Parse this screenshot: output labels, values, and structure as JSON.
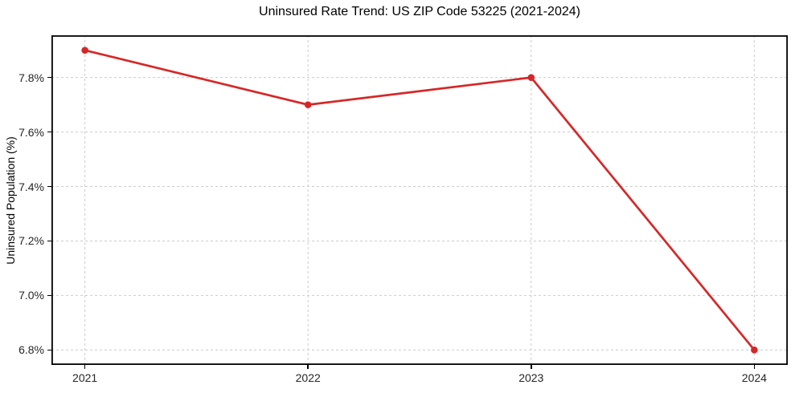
{
  "figure": {
    "background": "#ffffff",
    "frame_color": "#000000"
  },
  "chart_data": {
    "type": "line",
    "title": "Uninsured Rate Trend: US ZIP Code 53225 (2021-2024)",
    "xlabel": "",
    "ylabel": "Uninsured Population (%)",
    "categories": [
      "2021",
      "2022",
      "2023",
      "2024"
    ],
    "series": [
      {
        "values": [
          7.9,
          7.7,
          7.8,
          6.8
        ],
        "color": "#d62728",
        "marker": "circle"
      }
    ],
    "ylim": [
      6.745,
      7.955
    ],
    "x_margin": 0.15,
    "yticks": {
      "values": [
        6.8,
        7.0,
        7.2,
        7.4,
        7.6,
        7.8
      ],
      "labels": [
        "6.8%",
        "7.0%",
        "7.2%",
        "7.4%",
        "7.6%",
        "7.8%"
      ]
    },
    "grid": {
      "show": true,
      "style": "dashed",
      "color": "#cccccc"
    },
    "legend": {
      "position": "none"
    }
  }
}
